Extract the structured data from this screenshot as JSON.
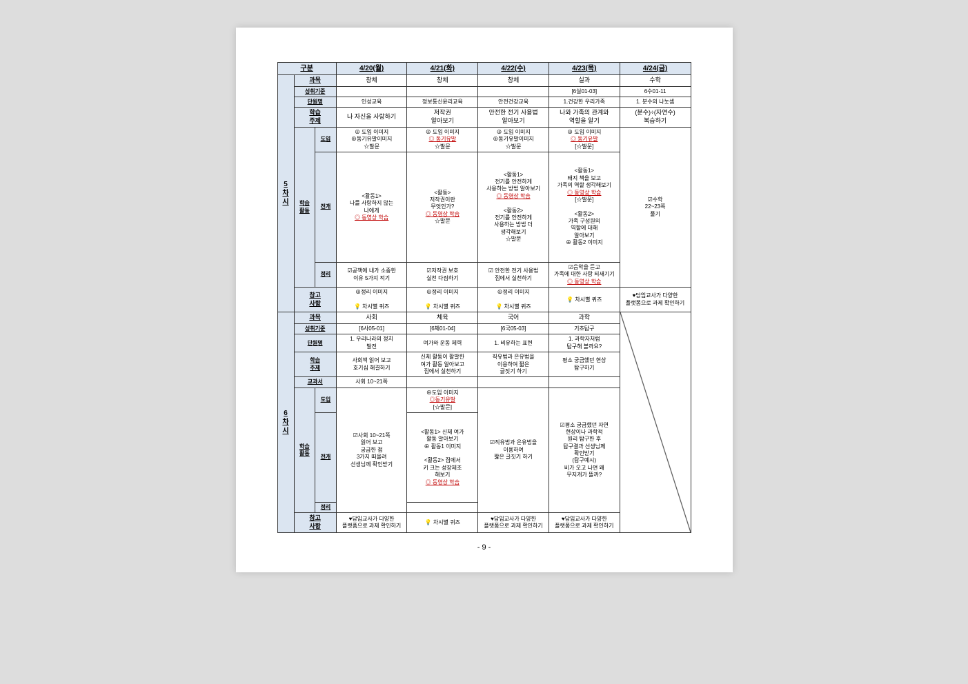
{
  "page_number": "- 9 -",
  "headers": {
    "gubun": "구분",
    "dates": [
      "4/20(월)",
      "4/21(화)",
      "4/22(수)",
      "4/23(목)",
      "4/24(금)"
    ],
    "subject": "과목",
    "standard": "성취기준",
    "unit": "단원명",
    "topic": "학습\n주제",
    "textbook": "교과서",
    "activity": "학습\n활동",
    "intro": "도입",
    "dev": "전개",
    "wrap": "정리",
    "ref": "참고\n사항"
  },
  "period5": {
    "label": "5\n차시",
    "subject_row": [
      "창체",
      "창체",
      "창체",
      "실과",
      "수학"
    ],
    "standard_row": [
      "",
      "",
      "",
      "[6실01-03]",
      "6수01-11"
    ],
    "unit_row": [
      "인성교육",
      "정보통신윤리교육",
      "안전건강교육",
      "1.건강한 우리가족",
      "1. 분수의 나눗셈"
    ],
    "topic_row": [
      "나 자신을 사랑하기",
      "저작권\n알아보기",
      "안전한 전기 사용법\n알아보기",
      "나와 가족의 관계와\n역할을 알기",
      "(분수)÷(자연수)\n복습하기"
    ],
    "intro_row": [
      "⊕ 도입 이미지\n⊕동기유발이미지\n☆발문",
      "⊕ 도입 이미지\n◎ 동기유발\n☆발문",
      "⊕ 도입 이미지\n⊕동기유발이미지\n☆발문",
      "⊕ 도입 이미지\n◎ 동기유발\n[☆발문]",
      ""
    ],
    "dev_row": [
      "<활동1>\n나를 사랑하지 않는\n나에게\n◎ 동영상 학습",
      "<활동>\n저작권이란\n무엇인가?\n◎ 동영상 학습\n☆발문",
      "<활동1>\n전기를 안전하게\n사용하는 방법 알아보기\n◎ 동영상 학습\n\n<활동2>\n전기를 안전하게\n사용하는 방법 더\n생각해보기\n☆발문",
      "<활동1>\n돼지 책을 보고\n가족의 역할 생각해보기\n◎ 동영상 학습\n[☆발문]\n\n<활동2>\n가족 구성원의\n역할에 대해\n알아보기\n⊕ 활동2 이미지",
      "☑수학\n22~23쪽\n풀기"
    ],
    "wrap_row": [
      "☑공책에 내가 소중한\n이유 5가지 적기",
      "☑저작권 보호\n실천 다짐하기",
      "☑ 안전한 전기 사용법\n집에서 실천하기",
      "☑음악을 듣고\n가족에 대한 사랑 되새기기\n◎ 동영상 학습",
      ""
    ],
    "ref_row": [
      "⊕정리 이미지\n\n💡 차시별 퀴즈",
      "⊕정리 이미지\n\n💡 차시별 퀴즈",
      "⊕정리 이미지\n\n💡 차시별 퀴즈",
      "💡 차시별 퀴즈",
      "♥담임교사가 다양한\n플랫폼으로 과제 확인하기"
    ]
  },
  "period6": {
    "label": "6\n차시",
    "subject_row": [
      "사회",
      "체육",
      "국어",
      "과학",
      ""
    ],
    "standard_row": [
      "[6사05-01]",
      "[6체01-04]",
      "[6국05-03]",
      "기초탐구",
      ""
    ],
    "unit_row": [
      "1. 우리나라의 정치\n발전",
      "여가와 운동 체력",
      "1. 비유하는 표현",
      "1. 과학자처럼\n탐구해 볼까요?",
      ""
    ],
    "topic_row": [
      "사회책 읽어 보고\n호기심 해결하기",
      "신체 활동이 활발한\n여가 활동 알아보고\n집에서 실천하기",
      "직유법과 은유법을\n이용하여 짧은\n글짓기 하기",
      "평소 궁금했던 현상\n탐구하기",
      ""
    ],
    "textbook_row": [
      "사회 10~21쪽",
      "",
      "",
      "",
      ""
    ],
    "intro_row": [
      "",
      "⊕도입 이미지\n◎동기유발\n[☆발문]",
      "",
      "",
      ""
    ],
    "dev_row": [
      "☑사회 10~21쪽\n읽어 보고\n궁금한 점\n3가지 떠올려\n선생님께 확인받기",
      "<활동1> 신체 여가\n활동 알아보기\n⊕ 활동1 이미지\n\n<활동2> 집에서\n키 크는 성장체조\n해보기\n◎ 동영상 학습",
      "☑직유법과 은유법을\n이용하여\n짧은 글짓기 하기",
      "☑평소 궁금했던 자연\n현상이나 과학적\n원리 탐구한 후\n탐구결과 선생님께\n확인받기\n(탐구예시)\n비가 오고 나면 왜\n무지개가 뜰까?",
      ""
    ],
    "wrap_row": [
      "",
      "",
      "",
      "",
      ""
    ],
    "ref_row": [
      "♥담임교사가 다양한\n플랫폼으로 과제 확인하기",
      "💡 차시별 퀴즈",
      "♥담임교사가 다양한\n플랫폼으로 과제 확인하기",
      "♥담임교사가 다양한\n플랫폼으로 과제 확인하기",
      ""
    ]
  },
  "colors": {
    "header_bg": "#dbe5f1",
    "link_color": "#c00000"
  }
}
